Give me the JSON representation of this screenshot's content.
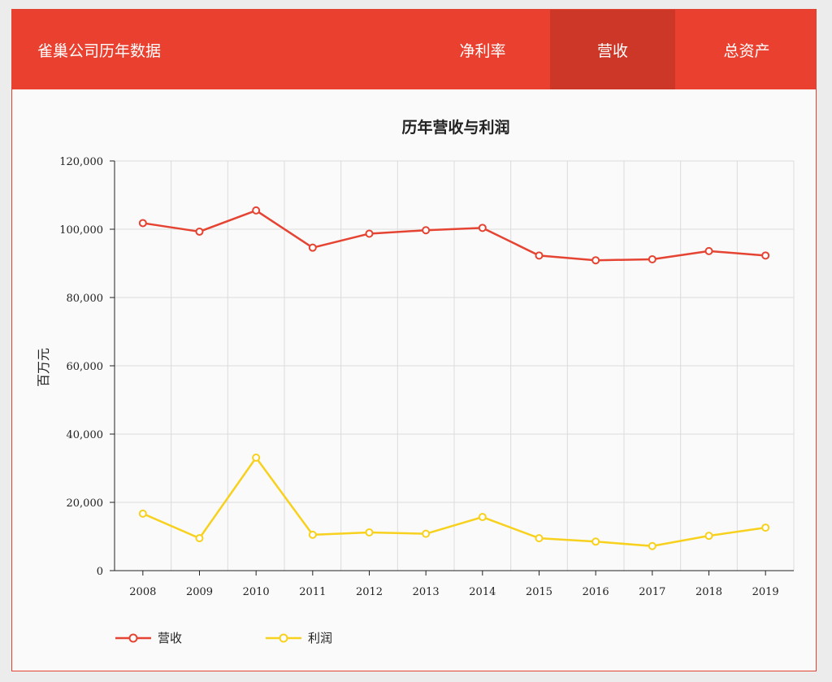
{
  "header": {
    "brand": "雀巢公司历年数据",
    "tabs": [
      {
        "label": "净利率",
        "active": false
      },
      {
        "label": "营收",
        "active": true
      },
      {
        "label": "总资产",
        "active": false
      }
    ]
  },
  "colors": {
    "nav_bg": "#ea402f",
    "nav_active": "#cd3727",
    "revenue": "#e54433",
    "profit": "#f7d11d"
  },
  "chart_data": {
    "type": "line",
    "title": "历年营收与利润",
    "ylabel": "百万元",
    "xlabel": "",
    "ylim": [
      0,
      120000
    ],
    "yticks": [
      "0",
      "20,000",
      "40,000",
      "60,000",
      "80,000",
      "100,000",
      "120,000"
    ],
    "categories": [
      "2008",
      "2009",
      "2010",
      "2011",
      "2012",
      "2013",
      "2014",
      "2015",
      "2016",
      "2017",
      "2018",
      "2019"
    ],
    "series": [
      {
        "name": "营收",
        "color": "#e54433",
        "values": [
          101800,
          99300,
          105500,
          94600,
          98700,
          99700,
          100400,
          92300,
          90900,
          91200,
          93600,
          92300
        ]
      },
      {
        "name": "利润",
        "color": "#f7d11d",
        "values": [
          16700,
          9500,
          33100,
          10500,
          11200,
          10800,
          15700,
          9500,
          8500,
          7200,
          10200,
          12600
        ]
      }
    ],
    "grid": true,
    "legend": "bottom-left"
  }
}
